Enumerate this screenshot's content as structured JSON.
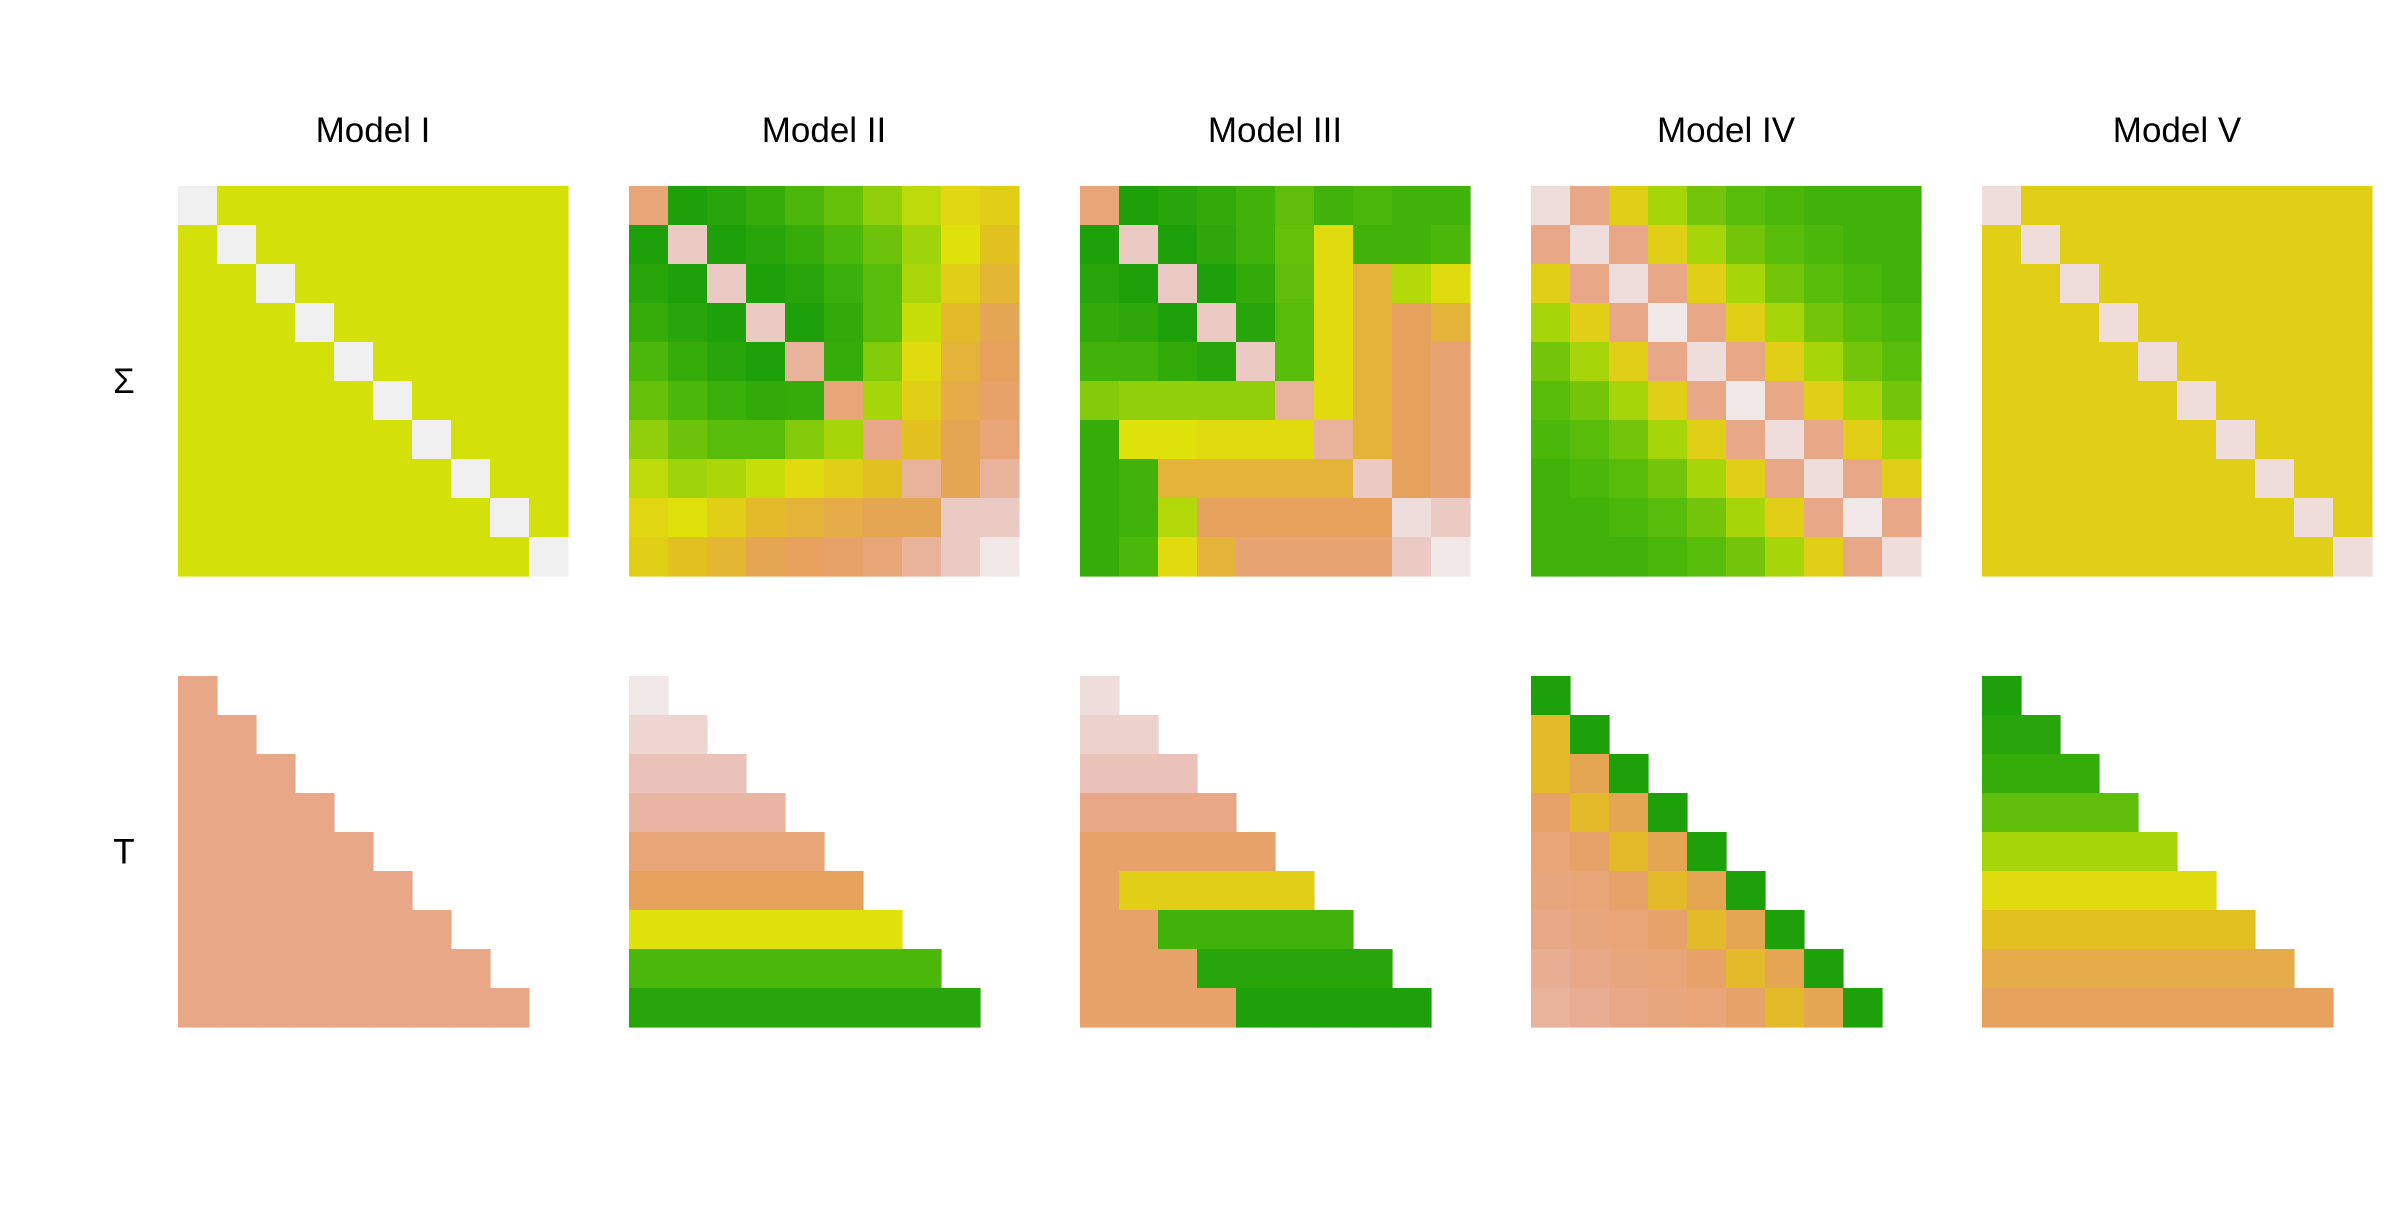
{
  "chart_data": {
    "type": "heatmap",
    "columns": [
      "Model I",
      "Model II",
      "Model III",
      "Model IV",
      "Model V"
    ],
    "rows": [
      "Σ",
      "T"
    ],
    "matrix_size": 10,
    "panels": [
      {
        "column": "Model I",
        "row": "Σ",
        "shape": "full",
        "cells": [
          [
            0.0,
            0.65,
            0.65,
            0.65,
            0.65,
            0.65,
            0.65,
            0.65,
            0.65,
            0.65
          ],
          [
            0.65,
            0.0,
            0.65,
            0.65,
            0.65,
            0.65,
            0.65,
            0.65,
            0.65,
            0.65
          ],
          [
            0.65,
            0.65,
            0.0,
            0.65,
            0.65,
            0.65,
            0.65,
            0.65,
            0.65,
            0.65
          ],
          [
            0.65,
            0.65,
            0.65,
            0.0,
            0.65,
            0.65,
            0.65,
            0.65,
            0.65,
            0.65
          ],
          [
            0.65,
            0.65,
            0.65,
            0.65,
            0.0,
            0.65,
            0.65,
            0.65,
            0.65,
            0.65
          ],
          [
            0.65,
            0.65,
            0.65,
            0.65,
            0.65,
            0.0,
            0.65,
            0.65,
            0.65,
            0.65
          ],
          [
            0.65,
            0.65,
            0.65,
            0.65,
            0.65,
            0.65,
            0.0,
            0.65,
            0.65,
            0.65
          ],
          [
            0.65,
            0.65,
            0.65,
            0.65,
            0.65,
            0.65,
            0.65,
            0.0,
            0.65,
            0.65
          ],
          [
            0.65,
            0.65,
            0.65,
            0.65,
            0.65,
            0.65,
            0.65,
            0.65,
            0.0,
            0.65
          ],
          [
            0.65,
            0.65,
            0.65,
            0.65,
            0.65,
            0.65,
            0.65,
            0.65,
            0.65,
            0.0
          ]
        ]
      },
      {
        "column": "Model II",
        "row": "Σ",
        "shape": "full",
        "cells": [
          [
            0.3,
            0.97,
            0.95,
            0.92,
            0.88,
            0.84,
            0.78,
            0.7,
            0.58,
            0.55
          ],
          [
            0.97,
            0.1,
            0.97,
            0.95,
            0.92,
            0.88,
            0.83,
            0.76,
            0.62,
            0.5
          ],
          [
            0.95,
            0.97,
            0.1,
            0.97,
            0.95,
            0.91,
            0.86,
            0.74,
            0.55,
            0.46
          ],
          [
            0.92,
            0.95,
            0.97,
            0.1,
            0.97,
            0.93,
            0.86,
            0.68,
            0.48,
            0.4
          ],
          [
            0.88,
            0.92,
            0.95,
            0.97,
            0.2,
            0.92,
            0.8,
            0.6,
            0.45,
            0.38
          ],
          [
            0.84,
            0.88,
            0.91,
            0.93,
            0.92,
            0.3,
            0.75,
            0.55,
            0.42,
            0.35
          ],
          [
            0.78,
            0.83,
            0.86,
            0.86,
            0.8,
            0.75,
            0.25,
            0.5,
            0.4,
            0.3
          ],
          [
            0.7,
            0.76,
            0.74,
            0.68,
            0.6,
            0.55,
            0.5,
            0.2,
            0.4,
            0.2
          ],
          [
            0.58,
            0.62,
            0.55,
            0.48,
            0.45,
            0.42,
            0.4,
            0.4,
            0.1,
            0.1
          ],
          [
            0.55,
            0.5,
            0.46,
            0.4,
            0.38,
            0.35,
            0.3,
            0.2,
            0.1,
            0.02
          ]
        ]
      },
      {
        "column": "Model III",
        "row": "Σ",
        "shape": "full",
        "cells": [
          [
            0.3,
            0.97,
            0.95,
            0.93,
            0.9,
            0.85,
            0.9,
            0.88,
            0.9,
            0.9
          ],
          [
            0.97,
            0.1,
            0.97,
            0.94,
            0.9,
            0.84,
            0.6,
            0.9,
            0.9,
            0.88
          ],
          [
            0.95,
            0.97,
            0.1,
            0.97,
            0.93,
            0.85,
            0.6,
            0.45,
            0.72,
            0.6
          ],
          [
            0.93,
            0.94,
            0.97,
            0.1,
            0.95,
            0.86,
            0.6,
            0.45,
            0.38,
            0.45
          ],
          [
            0.9,
            0.9,
            0.93,
            0.95,
            0.1,
            0.86,
            0.6,
            0.45,
            0.38,
            0.32
          ],
          [
            0.8,
            0.78,
            0.78,
            0.78,
            0.78,
            0.2,
            0.6,
            0.45,
            0.38,
            0.32
          ],
          [
            0.92,
            0.62,
            0.62,
            0.6,
            0.6,
            0.6,
            0.2,
            0.45,
            0.38,
            0.32
          ],
          [
            0.92,
            0.9,
            0.45,
            0.45,
            0.45,
            0.45,
            0.45,
            0.1,
            0.38,
            0.32
          ],
          [
            0.92,
            0.9,
            0.72,
            0.38,
            0.38,
            0.38,
            0.38,
            0.38,
            0.05,
            0.1
          ],
          [
            0.92,
            0.88,
            0.6,
            0.45,
            0.32,
            0.32,
            0.32,
            0.32,
            0.1,
            0.02
          ]
        ]
      },
      {
        "column": "Model IV",
        "row": "Σ",
        "shape": "full",
        "cells": [
          [
            0.05,
            0.25,
            0.55,
            0.75,
            0.82,
            0.86,
            0.88,
            0.9,
            0.9,
            0.9
          ],
          [
            0.25,
            0.05,
            0.25,
            0.55,
            0.75,
            0.82,
            0.86,
            0.88,
            0.9,
            0.9
          ],
          [
            0.55,
            0.25,
            0.05,
            0.25,
            0.55,
            0.75,
            0.82,
            0.86,
            0.88,
            0.9
          ],
          [
            0.75,
            0.55,
            0.25,
            0.02,
            0.25,
            0.55,
            0.75,
            0.82,
            0.86,
            0.88
          ],
          [
            0.82,
            0.75,
            0.55,
            0.25,
            0.05,
            0.25,
            0.55,
            0.75,
            0.82,
            0.86
          ],
          [
            0.86,
            0.82,
            0.75,
            0.55,
            0.25,
            0.02,
            0.25,
            0.55,
            0.75,
            0.82
          ],
          [
            0.88,
            0.86,
            0.82,
            0.75,
            0.55,
            0.25,
            0.05,
            0.25,
            0.55,
            0.75
          ],
          [
            0.9,
            0.88,
            0.86,
            0.82,
            0.75,
            0.55,
            0.25,
            0.05,
            0.25,
            0.55
          ],
          [
            0.9,
            0.9,
            0.88,
            0.86,
            0.82,
            0.75,
            0.55,
            0.25,
            0.02,
            0.25
          ],
          [
            0.9,
            0.9,
            0.9,
            0.88,
            0.86,
            0.82,
            0.75,
            0.55,
            0.25,
            0.05
          ]
        ]
      },
      {
        "column": "Model V",
        "row": "Σ",
        "shape": "full",
        "cells": [
          [
            0.05,
            0.55,
            0.55,
            0.55,
            0.55,
            0.55,
            0.55,
            0.55,
            0.55,
            0.55
          ],
          [
            0.55,
            0.05,
            0.55,
            0.55,
            0.55,
            0.55,
            0.55,
            0.55,
            0.55,
            0.55
          ],
          [
            0.55,
            0.55,
            0.05,
            0.55,
            0.55,
            0.55,
            0.55,
            0.55,
            0.55,
            0.55
          ],
          [
            0.55,
            0.55,
            0.55,
            0.05,
            0.55,
            0.55,
            0.55,
            0.55,
            0.55,
            0.55
          ],
          [
            0.55,
            0.55,
            0.55,
            0.55,
            0.05,
            0.55,
            0.55,
            0.55,
            0.55,
            0.55
          ],
          [
            0.55,
            0.55,
            0.55,
            0.55,
            0.55,
            0.05,
            0.55,
            0.55,
            0.55,
            0.55
          ],
          [
            0.55,
            0.55,
            0.55,
            0.55,
            0.55,
            0.55,
            0.05,
            0.55,
            0.55,
            0.55
          ],
          [
            0.55,
            0.55,
            0.55,
            0.55,
            0.55,
            0.55,
            0.55,
            0.05,
            0.55,
            0.55
          ],
          [
            0.55,
            0.55,
            0.55,
            0.55,
            0.55,
            0.55,
            0.55,
            0.55,
            0.05,
            0.55
          ],
          [
            0.55,
            0.55,
            0.55,
            0.55,
            0.55,
            0.55,
            0.55,
            0.55,
            0.55,
            0.05
          ]
        ]
      },
      {
        "column": "Model I",
        "row": "T",
        "shape": "lower",
        "cells": [
          [
            0.25
          ],
          [
            0.25,
            0.25
          ],
          [
            0.25,
            0.25,
            0.25
          ],
          [
            0.25,
            0.25,
            0.25,
            0.25
          ],
          [
            0.25,
            0.25,
            0.25,
            0.25,
            0.25
          ],
          [
            0.25,
            0.25,
            0.25,
            0.25,
            0.25,
            0.25
          ],
          [
            0.25,
            0.25,
            0.25,
            0.25,
            0.25,
            0.25,
            0.25
          ],
          [
            0.25,
            0.25,
            0.25,
            0.25,
            0.25,
            0.25,
            0.25,
            0.25
          ],
          [
            0.25,
            0.25,
            0.25,
            0.25,
            0.25,
            0.25,
            0.25,
            0.25,
            0.25
          ]
        ]
      },
      {
        "column": "Model II",
        "row": "T",
        "shape": "lower",
        "cells": [
          [
            0.02
          ],
          [
            0.07,
            0.07
          ],
          [
            0.12,
            0.12,
            0.12
          ],
          [
            0.18,
            0.18,
            0.18,
            0.18
          ],
          [
            0.3,
            0.3,
            0.3,
            0.3,
            0.3
          ],
          [
            0.38,
            0.38,
            0.38,
            0.38,
            0.38,
            0.38
          ],
          [
            0.62,
            0.62,
            0.62,
            0.62,
            0.62,
            0.62,
            0.62
          ],
          [
            0.88,
            0.88,
            0.88,
            0.88,
            0.88,
            0.88,
            0.88,
            0.88
          ],
          [
            0.95,
            0.95,
            0.95,
            0.95,
            0.95,
            0.95,
            0.95,
            0.95,
            0.95
          ]
        ]
      },
      {
        "column": "Model III",
        "row": "T",
        "shape": "lower",
        "cells": [
          [
            0.05
          ],
          [
            0.08,
            0.08
          ],
          [
            0.12,
            0.12,
            0.12
          ],
          [
            0.25,
            0.25,
            0.25,
            0.25
          ],
          [
            0.35,
            0.35,
            0.35,
            0.35,
            0.35
          ],
          [
            0.35,
            0.55,
            0.55,
            0.55,
            0.55,
            0.55
          ],
          [
            0.35,
            0.35,
            0.9,
            0.9,
            0.9,
            0.9,
            0.9
          ],
          [
            0.35,
            0.35,
            0.35,
            0.95,
            0.95,
            0.95,
            0.95,
            0.95
          ],
          [
            0.35,
            0.35,
            0.35,
            0.35,
            0.97,
            0.97,
            0.97,
            0.97,
            0.97
          ]
        ]
      },
      {
        "column": "Model IV",
        "row": "T",
        "shape": "lower",
        "cells": [
          [
            0.97
          ],
          [
            0.48,
            0.97
          ],
          [
            0.48,
            0.4,
            0.97
          ],
          [
            0.35,
            0.48,
            0.4,
            0.97
          ],
          [
            0.3,
            0.35,
            0.48,
            0.4,
            0.97
          ],
          [
            0.28,
            0.3,
            0.35,
            0.48,
            0.4,
            0.97
          ],
          [
            0.25,
            0.28,
            0.3,
            0.35,
            0.48,
            0.4,
            0.97
          ],
          [
            0.22,
            0.25,
            0.28,
            0.3,
            0.35,
            0.48,
            0.4,
            0.97
          ],
          [
            0.2,
            0.22,
            0.25,
            0.28,
            0.3,
            0.35,
            0.48,
            0.4,
            0.97
          ]
        ]
      },
      {
        "column": "Model V",
        "row": "T",
        "shape": "lower",
        "cells": [
          [
            0.97
          ],
          [
            0.95,
            0.95
          ],
          [
            0.92,
            0.92,
            0.92
          ],
          [
            0.85,
            0.85,
            0.85,
            0.85
          ],
          [
            0.75,
            0.75,
            0.75,
            0.75,
            0.75
          ],
          [
            0.6,
            0.6,
            0.6,
            0.6,
            0.6,
            0.6
          ],
          [
            0.5,
            0.5,
            0.5,
            0.5,
            0.5,
            0.5,
            0.5
          ],
          [
            0.42,
            0.42,
            0.42,
            0.42,
            0.42,
            0.42,
            0.42,
            0.42
          ],
          [
            0.38,
            0.38,
            0.38,
            0.38,
            0.38,
            0.38,
            0.38,
            0.38,
            0.38
          ]
        ]
      }
    ],
    "value_range": [
      0,
      1
    ],
    "colormap": [
      "#f0f0f0",
      "#eac0b8",
      "#e8a888",
      "#e6a060",
      "#e2c020",
      "#dfe20a",
      "#a6d60a",
      "#4cb80a",
      "#10980a"
    ],
    "legend": "none",
    "grid": false
  }
}
